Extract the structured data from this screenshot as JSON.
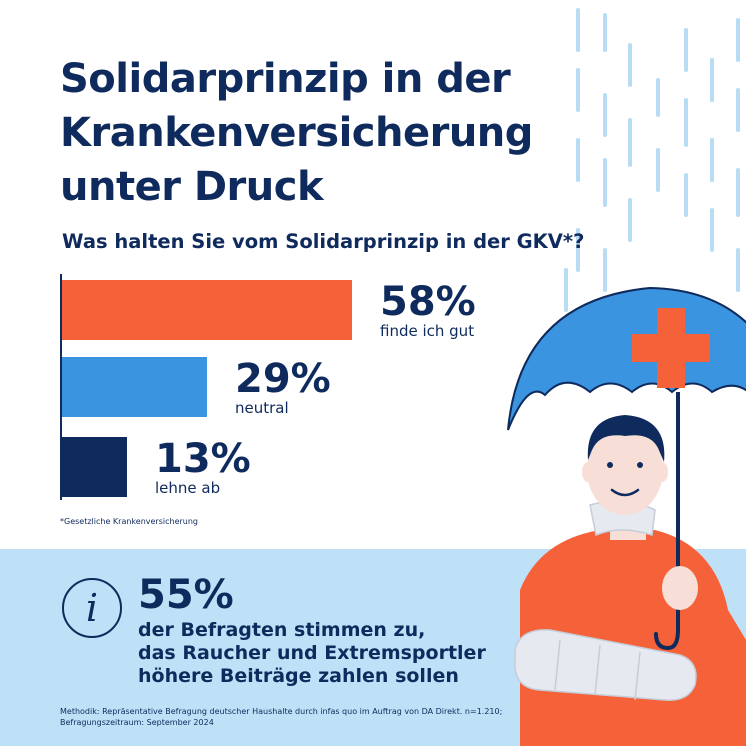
{
  "title_lines": [
    "Solidarprinzip in der",
    "Krankenversicherung",
    "unter Druck"
  ],
  "question": "Was halten Sie vom Solidarprinzip in der GKV*?",
  "chart_data": {
    "type": "bar",
    "orientation": "horizontal",
    "title": "Was halten Sie vom Solidarprinzip in der GKV*?",
    "categories": [
      "finde ich gut",
      "neutral",
      "lehne ab"
    ],
    "values": [
      58,
      29,
      13
    ],
    "value_labels": [
      "58%",
      "29%",
      "13%"
    ],
    "colors": [
      "#f5623a",
      "#3a94e0",
      "#0f2a5c"
    ],
    "xlim": [
      0,
      58
    ],
    "grid": false
  },
  "footnote": "*Gesetzliche Krankenversicherung",
  "info": {
    "percent": "55%",
    "text_lines": [
      "der Befragten stimmen zu,",
      "das Raucher und Extremsportler",
      "höhere Beiträge zahlen sollen"
    ],
    "icon": "info-icon"
  },
  "method_lines": [
    "Methodik: Repräsentative Befragung deutscher Haushalte durch infas quo im Auftrag von DA Direkt. n=1.210;",
    "Befragungszeitraum: September 2024"
  ],
  "colors": {
    "navy": "#0f2a5c",
    "orange": "#f5623a",
    "blue": "#3a94e0",
    "light_blue": "#bfe1f8",
    "rain": "#b9dcf5"
  }
}
